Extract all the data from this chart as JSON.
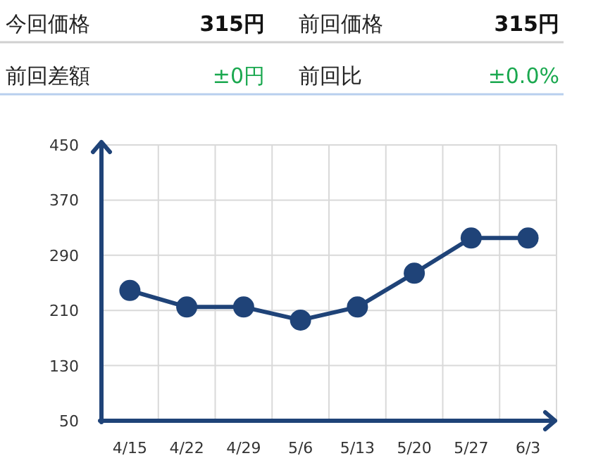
{
  "chart_data": [
    {
      "type": "other",
      "annotations": [
        "今回価格",
        "315円",
        "前回価格",
        "315円",
        "前回差額",
        "±0円",
        "前回比",
        "±0.0%"
      ]
    },
    {
      "type": "line",
      "categories": [
        "4/15",
        "4/22",
        "4/29",
        "5/6",
        "5/13",
        "5/20",
        "5/27",
        "6/3"
      ],
      "series": [
        {
          "color": "#1f4378",
          "values": [
            239,
            215,
            215,
            196,
            215,
            264,
            315,
            315
          ]
        }
      ],
      "ylim": [
        50,
        450
      ],
      "yticks": [
        50,
        130,
        210,
        290,
        370,
        450
      ],
      "grid": true,
      "marker": "circle",
      "line_style": "solid"
    }
  ]
}
